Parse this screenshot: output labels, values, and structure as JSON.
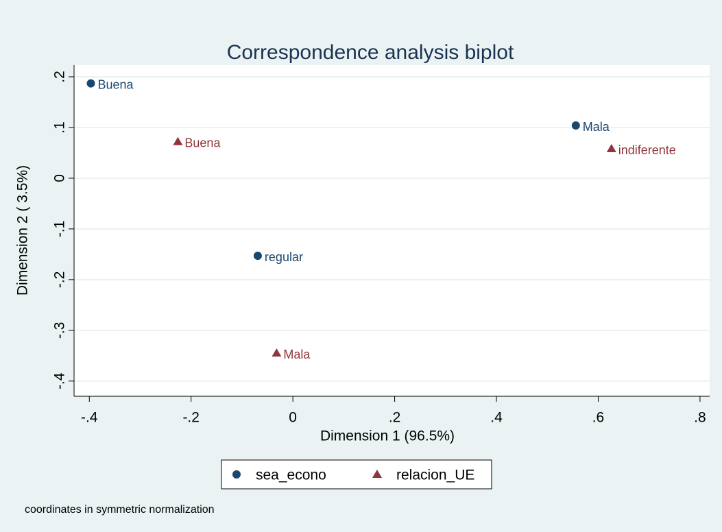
{
  "chart_data": {
    "type": "scatter",
    "title": "Correspondence analysis biplot",
    "x_label": "Dimension 1 (96.5%)",
    "y_label": "Dimension 2 ( 3.5%)",
    "note": "coordinates in symmetric normalization",
    "xlim": [
      -0.43,
      0.819
    ],
    "ylim": [
      -0.43,
      0.223
    ],
    "xticks": [
      {
        "value": -0.4,
        "label": "-.4"
      },
      {
        "value": -0.2,
        "label": "-.2"
      },
      0,
      {
        "value": 0.2,
        "label": ".2"
      },
      {
        "value": 0.4,
        "label": ".4"
      },
      {
        "value": 0.6,
        "label": ".6"
      },
      {
        "value": 0.8,
        "label": ".8"
      }
    ],
    "yticks": [
      {
        "value": 0.2,
        "label": ".2"
      },
      {
        "value": 0.1,
        "label": ".1"
      },
      0,
      {
        "value": -0.1,
        "label": "-.1"
      },
      {
        "value": -0.2,
        "label": "-.2"
      },
      {
        "value": -0.3,
        "label": "-.3"
      },
      {
        "value": -0.4,
        "label": "-.4"
      }
    ],
    "grid": true,
    "series": [
      {
        "name": "sea_econo",
        "color": "#1a476f",
        "marker": "circle",
        "labels": [
          "Buena",
          "Mala",
          "regular"
        ],
        "x": [
          -0.397,
          0.556,
          -0.069
        ],
        "values": [
          0.187,
          0.104,
          -0.153
        ]
      },
      {
        "name": "relacion_UE",
        "color": "#90353b",
        "marker": "triangle",
        "labels": [
          "Buena",
          "indiferente",
          "Mala"
        ],
        "x": [
          -0.226,
          0.626,
          -0.032
        ],
        "values": [
          0.072,
          0.058,
          -0.345
        ]
      }
    ]
  }
}
